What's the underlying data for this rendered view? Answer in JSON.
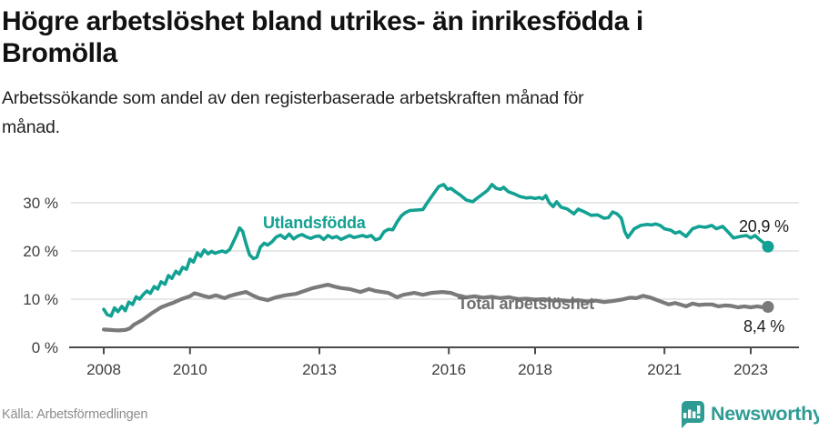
{
  "header": {
    "title_lines": [
      "Högre arbetslöshet bland utrikes- än inrikesfödda i",
      "Bromölla"
    ],
    "subtitle_lines": [
      "Arbetssökande som andel av den registerbaserade arbetskraften månad för",
      "månad."
    ]
  },
  "footer": {
    "source": "Källa: Arbetsförmedlingen",
    "brand": "Newsworthy"
  },
  "colors": {
    "accent_teal": "#12a192",
    "line_gray": "#7a7a7a",
    "label_gray": "#6f6f6f",
    "gridline": "#d9d9d9",
    "axis": "#4a4a4a",
    "tick_text": "#3d3d3d",
    "brand_teal": "#2f9c94"
  },
  "chart_data": {
    "type": "line",
    "title": "Högre arbetslöshet bland utrikes- än inrikesfödda i Bromölla",
    "subtitle": "Arbetssökande som andel av den registerbaserade arbetskraften månad för månad.",
    "source": "Källa: Arbetsförmedlingen",
    "xlabel": "",
    "ylabel": "",
    "xlim": [
      2007.8,
      2023.6
    ],
    "ylim": [
      0,
      35
    ],
    "grid": "horizontal",
    "legend_position": "inline-on-line",
    "yticks": [
      {
        "value": 0,
        "label": "0 %"
      },
      {
        "value": 10,
        "label": "10 %"
      },
      {
        "value": 20,
        "label": "20 %"
      },
      {
        "value": 30,
        "label": "30 %"
      }
    ],
    "xticks": [
      {
        "value": 2008,
        "label": "2008"
      },
      {
        "value": 2010,
        "label": "2010"
      },
      {
        "value": 2013,
        "label": "2013"
      },
      {
        "value": 2016,
        "label": "2016"
      },
      {
        "value": 2018,
        "label": "2018"
      },
      {
        "value": 2021,
        "label": "2021"
      },
      {
        "value": 2023,
        "label": "2023"
      }
    ],
    "series": [
      {
        "name": "Utlandsfödda",
        "color": "#12a192",
        "stroke_width": 3.6,
        "end_value": 20.9,
        "end_label": "20,9 %",
        "points": [
          [
            2008.0,
            7.9
          ],
          [
            2008.08,
            6.8
          ],
          [
            2008.17,
            6.5
          ],
          [
            2008.25,
            8.2
          ],
          [
            2008.33,
            7.4
          ],
          [
            2008.42,
            8.5
          ],
          [
            2008.5,
            7.6
          ],
          [
            2008.58,
            9.4
          ],
          [
            2008.67,
            8.9
          ],
          [
            2008.75,
            10.5
          ],
          [
            2008.83,
            10.0
          ],
          [
            2008.92,
            11.0
          ],
          [
            2009.0,
            11.7
          ],
          [
            2009.08,
            11.2
          ],
          [
            2009.17,
            12.6
          ],
          [
            2009.25,
            12.1
          ],
          [
            2009.33,
            13.6
          ],
          [
            2009.42,
            13.1
          ],
          [
            2009.5,
            14.9
          ],
          [
            2009.58,
            14.3
          ],
          [
            2009.67,
            15.8
          ],
          [
            2009.75,
            15.2
          ],
          [
            2009.83,
            16.6
          ],
          [
            2009.92,
            16.2
          ],
          [
            2010.0,
            18.3
          ],
          [
            2010.08,
            17.7
          ],
          [
            2010.17,
            19.6
          ],
          [
            2010.25,
            18.9
          ],
          [
            2010.33,
            20.2
          ],
          [
            2010.42,
            19.4
          ],
          [
            2010.5,
            19.9
          ],
          [
            2010.58,
            19.5
          ],
          [
            2010.67,
            19.8
          ],
          [
            2010.75,
            20.0
          ],
          [
            2010.83,
            19.7
          ],
          [
            2010.92,
            20.3
          ],
          [
            2011.0,
            21.8
          ],
          [
            2011.08,
            23.3
          ],
          [
            2011.15,
            24.8
          ],
          [
            2011.22,
            24.1
          ],
          [
            2011.3,
            21.5
          ],
          [
            2011.38,
            19.2
          ],
          [
            2011.47,
            18.4
          ],
          [
            2011.55,
            18.7
          ],
          [
            2011.63,
            20.8
          ],
          [
            2011.72,
            21.6
          ],
          [
            2011.8,
            21.2
          ],
          [
            2011.9,
            21.9
          ],
          [
            2012.0,
            22.9
          ],
          [
            2012.1,
            23.3
          ],
          [
            2012.2,
            22.6
          ],
          [
            2012.3,
            23.5
          ],
          [
            2012.4,
            22.5
          ],
          [
            2012.5,
            23.1
          ],
          [
            2012.6,
            23.4
          ],
          [
            2012.7,
            22.9
          ],
          [
            2012.8,
            22.6
          ],
          [
            2012.9,
            23.0
          ],
          [
            2013.0,
            23.1
          ],
          [
            2013.1,
            22.4
          ],
          [
            2013.2,
            23.2
          ],
          [
            2013.3,
            22.7
          ],
          [
            2013.4,
            23.0
          ],
          [
            2013.5,
            22.4
          ],
          [
            2013.6,
            22.8
          ],
          [
            2013.7,
            23.2
          ],
          [
            2013.8,
            22.8
          ],
          [
            2013.9,
            23.0
          ],
          [
            2014.0,
            23.2
          ],
          [
            2014.1,
            22.9
          ],
          [
            2014.2,
            23.2
          ],
          [
            2014.3,
            22.3
          ],
          [
            2014.4,
            22.6
          ],
          [
            2014.5,
            24.0
          ],
          [
            2014.6,
            24.5
          ],
          [
            2014.7,
            24.4
          ],
          [
            2014.8,
            26.0
          ],
          [
            2014.9,
            27.3
          ],
          [
            2015.0,
            28.0
          ],
          [
            2015.1,
            28.4
          ],
          [
            2015.25,
            28.5
          ],
          [
            2015.4,
            28.6
          ],
          [
            2015.5,
            30.0
          ],
          [
            2015.65,
            31.9
          ],
          [
            2015.77,
            33.4
          ],
          [
            2015.88,
            33.8
          ],
          [
            2015.97,
            32.8
          ],
          [
            2016.05,
            33.0
          ],
          [
            2016.15,
            32.3
          ],
          [
            2016.25,
            31.7
          ],
          [
            2016.4,
            30.6
          ],
          [
            2016.55,
            30.2
          ],
          [
            2016.65,
            30.9
          ],
          [
            2016.8,
            31.9
          ],
          [
            2016.9,
            32.6
          ],
          [
            2017.0,
            33.8
          ],
          [
            2017.1,
            33.0
          ],
          [
            2017.2,
            32.8
          ],
          [
            2017.27,
            33.2
          ],
          [
            2017.38,
            32.3
          ],
          [
            2017.5,
            31.9
          ],
          [
            2017.65,
            31.3
          ],
          [
            2017.8,
            31.0
          ],
          [
            2017.9,
            31.1
          ],
          [
            2018.0,
            30.9
          ],
          [
            2018.1,
            31.1
          ],
          [
            2018.17,
            30.8
          ],
          [
            2018.25,
            31.5
          ],
          [
            2018.33,
            30.0
          ],
          [
            2018.42,
            29.2
          ],
          [
            2018.5,
            30.2
          ],
          [
            2018.6,
            29.1
          ],
          [
            2018.75,
            28.7
          ],
          [
            2018.9,
            27.7
          ],
          [
            2019.0,
            28.7
          ],
          [
            2019.15,
            28.1
          ],
          [
            2019.3,
            27.4
          ],
          [
            2019.45,
            27.5
          ],
          [
            2019.6,
            26.8
          ],
          [
            2019.7,
            26.9
          ],
          [
            2019.8,
            28.1
          ],
          [
            2019.9,
            27.7
          ],
          [
            2020.0,
            26.8
          ],
          [
            2020.08,
            24.0
          ],
          [
            2020.15,
            22.8
          ],
          [
            2020.3,
            24.6
          ],
          [
            2020.45,
            25.3
          ],
          [
            2020.6,
            25.5
          ],
          [
            2020.7,
            25.4
          ],
          [
            2020.8,
            25.6
          ],
          [
            2020.9,
            25.3
          ],
          [
            2021.0,
            24.6
          ],
          [
            2021.15,
            24.3
          ],
          [
            2021.25,
            23.7
          ],
          [
            2021.35,
            24.0
          ],
          [
            2021.5,
            23.0
          ],
          [
            2021.65,
            24.6
          ],
          [
            2021.8,
            25.1
          ],
          [
            2021.95,
            24.9
          ],
          [
            2022.1,
            25.3
          ],
          [
            2022.2,
            24.6
          ],
          [
            2022.35,
            25.1
          ],
          [
            2022.5,
            23.7
          ],
          [
            2022.6,
            22.7
          ],
          [
            2022.75,
            23.0
          ],
          [
            2022.9,
            23.2
          ],
          [
            2023.0,
            22.7
          ],
          [
            2023.1,
            23.2
          ],
          [
            2023.2,
            22.4
          ],
          [
            2023.3,
            21.7
          ],
          [
            2023.4,
            20.9
          ]
        ]
      },
      {
        "name": "Total arbetslöshet",
        "color": "#7a7a7a",
        "stroke_width": 4.2,
        "end_value": 8.4,
        "end_label": "8,4 %",
        "points": [
          [
            2008.0,
            3.7
          ],
          [
            2008.17,
            3.6
          ],
          [
            2008.33,
            3.5
          ],
          [
            2008.5,
            3.6
          ],
          [
            2008.6,
            3.9
          ],
          [
            2008.7,
            4.7
          ],
          [
            2008.9,
            5.7
          ],
          [
            2009.1,
            7.0
          ],
          [
            2009.33,
            8.3
          ],
          [
            2009.5,
            8.9
          ],
          [
            2009.6,
            9.2
          ],
          [
            2009.8,
            10.0
          ],
          [
            2010.0,
            10.6
          ],
          [
            2010.1,
            11.2
          ],
          [
            2010.2,
            11.0
          ],
          [
            2010.3,
            10.7
          ],
          [
            2010.45,
            10.4
          ],
          [
            2010.6,
            10.8
          ],
          [
            2010.8,
            10.2
          ],
          [
            2010.9,
            10.6
          ],
          [
            2011.1,
            11.1
          ],
          [
            2011.3,
            11.5
          ],
          [
            2011.45,
            10.8
          ],
          [
            2011.6,
            10.2
          ],
          [
            2011.8,
            9.8
          ],
          [
            2012.0,
            10.4
          ],
          [
            2012.2,
            10.8
          ],
          [
            2012.45,
            11.1
          ],
          [
            2012.65,
            11.7
          ],
          [
            2012.85,
            12.3
          ],
          [
            2013.0,
            12.6
          ],
          [
            2013.2,
            13.0
          ],
          [
            2013.35,
            12.6
          ],
          [
            2013.5,
            12.3
          ],
          [
            2013.7,
            12.1
          ],
          [
            2013.95,
            11.5
          ],
          [
            2014.15,
            12.1
          ],
          [
            2014.3,
            11.7
          ],
          [
            2014.45,
            11.5
          ],
          [
            2014.6,
            11.3
          ],
          [
            2014.8,
            10.4
          ],
          [
            2014.95,
            10.9
          ],
          [
            2015.2,
            11.3
          ],
          [
            2015.4,
            10.9
          ],
          [
            2015.6,
            11.3
          ],
          [
            2015.85,
            11.5
          ],
          [
            2016.05,
            11.3
          ],
          [
            2016.2,
            10.8
          ],
          [
            2016.4,
            10.4
          ],
          [
            2016.6,
            10.6
          ],
          [
            2016.8,
            10.3
          ],
          [
            2017.0,
            10.5
          ],
          [
            2017.2,
            10.2
          ],
          [
            2017.4,
            10.4
          ],
          [
            2017.6,
            10.0
          ],
          [
            2017.8,
            10.1
          ],
          [
            2018.0,
            9.9
          ],
          [
            2018.2,
            10.0
          ],
          [
            2018.4,
            9.7
          ],
          [
            2018.6,
            9.8
          ],
          [
            2018.8,
            9.6
          ],
          [
            2019.0,
            9.8
          ],
          [
            2019.2,
            9.5
          ],
          [
            2019.4,
            9.7
          ],
          [
            2019.6,
            9.4
          ],
          [
            2019.8,
            9.6
          ],
          [
            2020.0,
            9.9
          ],
          [
            2020.2,
            10.3
          ],
          [
            2020.35,
            10.2
          ],
          [
            2020.5,
            10.7
          ],
          [
            2020.65,
            10.4
          ],
          [
            2020.8,
            9.9
          ],
          [
            2020.95,
            9.4
          ],
          [
            2021.1,
            8.9
          ],
          [
            2021.25,
            9.2
          ],
          [
            2021.4,
            8.8
          ],
          [
            2021.5,
            8.5
          ],
          [
            2021.65,
            9.1
          ],
          [
            2021.8,
            8.8
          ],
          [
            2021.95,
            8.9
          ],
          [
            2022.1,
            8.9
          ],
          [
            2022.25,
            8.5
          ],
          [
            2022.4,
            8.7
          ],
          [
            2022.55,
            8.6
          ],
          [
            2022.7,
            8.3
          ],
          [
            2022.85,
            8.5
          ],
          [
            2023.0,
            8.3
          ],
          [
            2023.15,
            8.5
          ],
          [
            2023.3,
            8.3
          ],
          [
            2023.4,
            8.4
          ]
        ]
      }
    ]
  }
}
